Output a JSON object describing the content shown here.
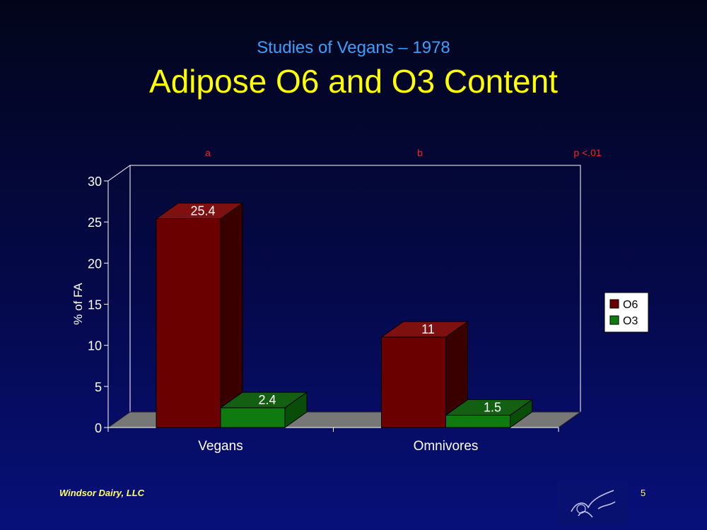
{
  "slide": {
    "subtitle": "Studies of Vegans – 1978",
    "title": "Adipose O6 and O3 Content",
    "footer": "Windsor Dairy, LLC",
    "page_number": "5"
  },
  "chart_data": {
    "type": "bar",
    "title": "",
    "categories": [
      "Vegans",
      "Omnivores"
    ],
    "series": [
      {
        "name": "O6",
        "values": [
          25.4,
          11
        ],
        "labels": [
          "25.4",
          "11"
        ],
        "color": "#6b0000",
        "side_color": "#3a0000",
        "top_color": "#7e1010"
      },
      {
        "name": "O3",
        "values": [
          2.4,
          1.5
        ],
        "labels": [
          "2.4",
          "1.5"
        ],
        "color": "#0f7a0f",
        "side_color": "#084d08",
        "top_color": "#136013"
      }
    ],
    "ylabel": "% of FA",
    "xlabel": "",
    "ylim": [
      0,
      30
    ],
    "yticks": [
      "0",
      "5",
      "10",
      "15",
      "20",
      "25",
      "30"
    ],
    "annotations": [
      "a",
      "b",
      "p <.01"
    ],
    "annotation_color": "#ff2020",
    "legend": "right",
    "floor_color": "#777777"
  }
}
